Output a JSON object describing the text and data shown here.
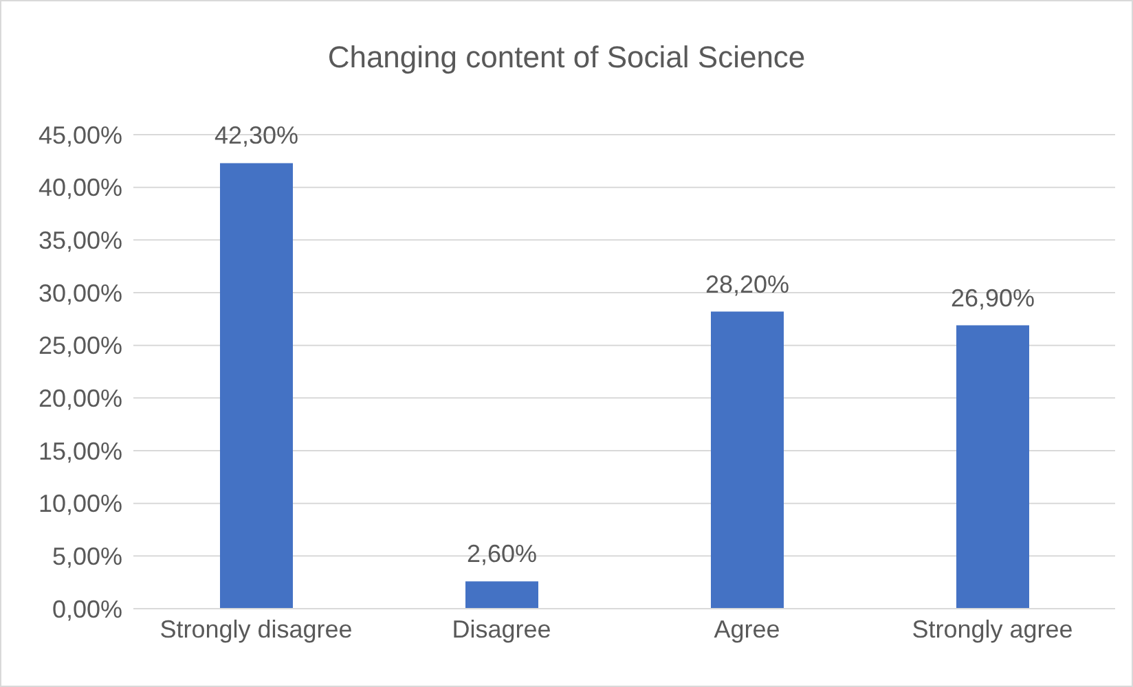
{
  "chart_data": {
    "type": "bar",
    "title": "Changing content of Social Science",
    "categories": [
      "Strongly disagree",
      "Disagree",
      "Agree",
      "Strongly agree"
    ],
    "values": [
      42.3,
      2.6,
      28.2,
      26.9
    ],
    "value_labels": [
      "42,30%",
      "2,60%",
      "28,20%",
      "26,90%"
    ],
    "color": "#4472c4",
    "ylim": [
      0,
      45
    ],
    "yticks": [
      {
        "value": 0,
        "label": "0,00%"
      },
      {
        "value": 5,
        "label": "5,00%"
      },
      {
        "value": 10,
        "label": "10,00%"
      },
      {
        "value": 15,
        "label": "15,00%"
      },
      {
        "value": 20,
        "label": "20,00%"
      },
      {
        "value": 25,
        "label": "25,00%"
      },
      {
        "value": 30,
        "label": "30,00%"
      },
      {
        "value": 35,
        "label": "35,00%"
      },
      {
        "value": 40,
        "label": "40,00%"
      },
      {
        "value": 45,
        "label": "45,00%"
      }
    ],
    "grid": "y"
  }
}
